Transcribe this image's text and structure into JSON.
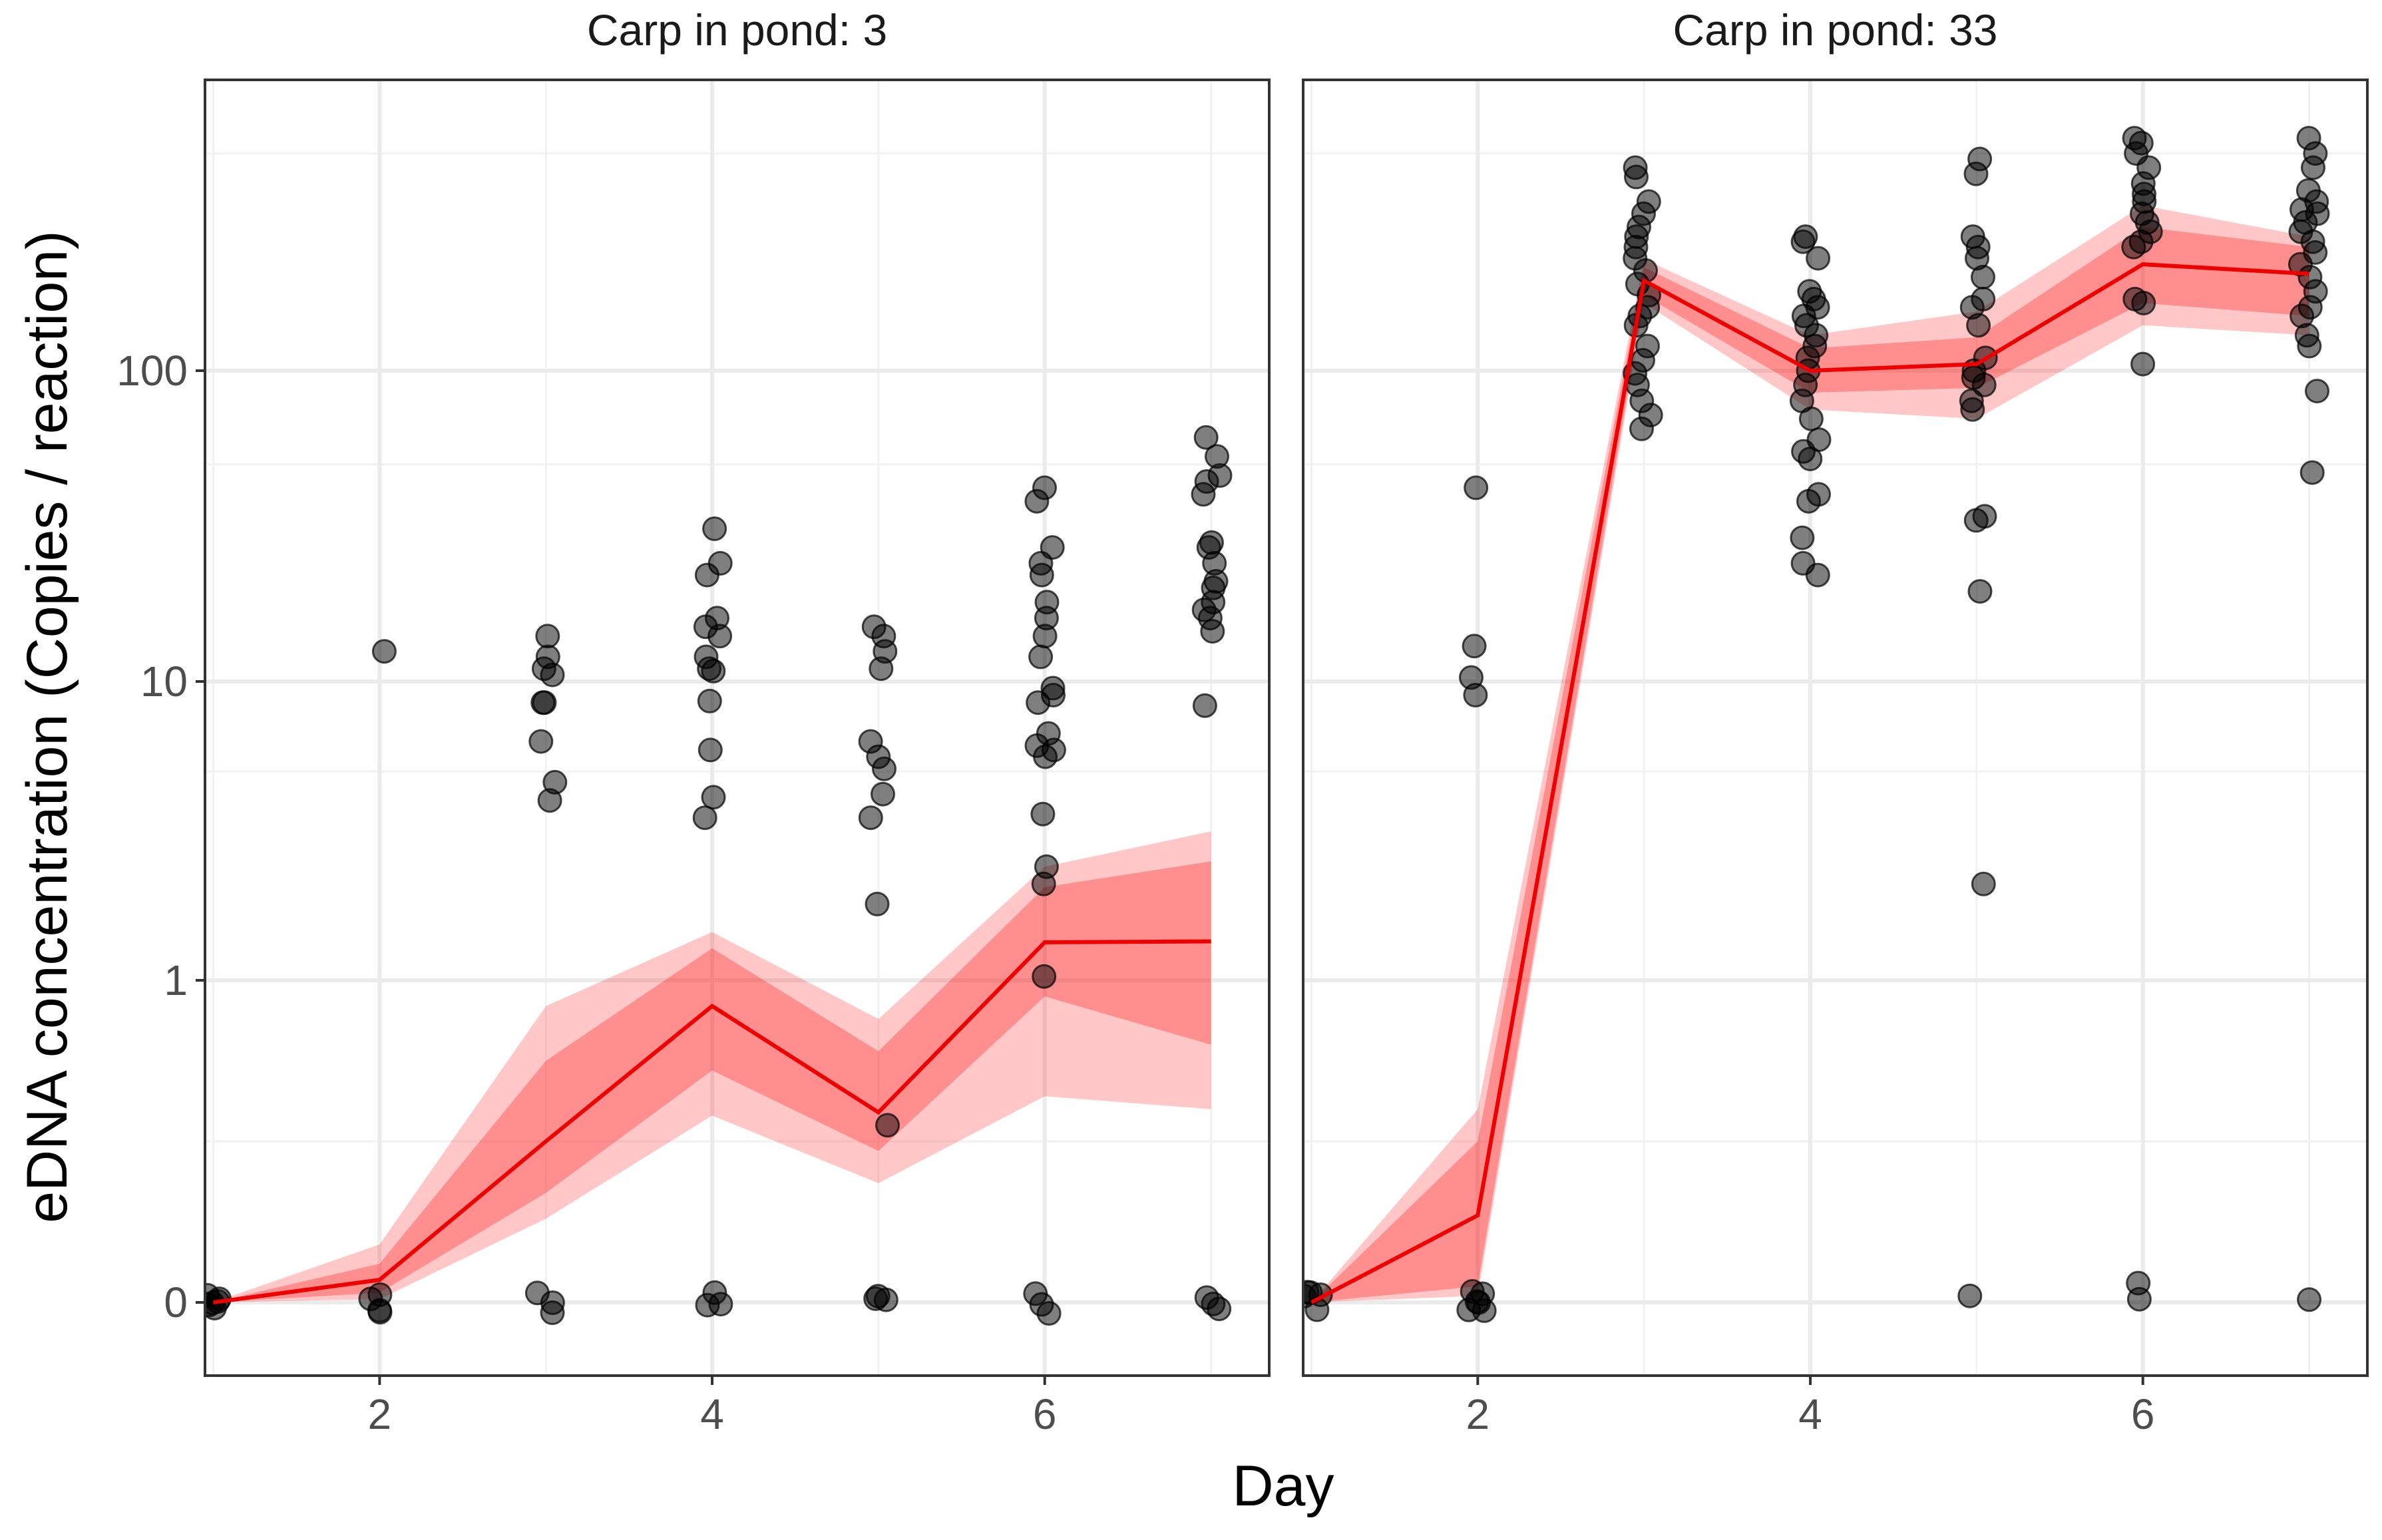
{
  "chart_data": [
    {
      "type": "line",
      "title": "Carp in pond: 3",
      "x": [
        1,
        2,
        3,
        4,
        5,
        6,
        7
      ],
      "series": [
        {
          "name": "mean",
          "values": [
            0,
            0.07,
            0.5,
            0.92,
            0.59,
            1.34,
            1.35
          ]
        },
        {
          "name": "inner_low",
          "values": [
            0,
            0.03,
            0.34,
            0.72,
            0.47,
            0.95,
            0.8
          ]
        },
        {
          "name": "inner_high",
          "values": [
            0,
            0.12,
            0.75,
            1.28,
            0.78,
            2.05,
            2.5
          ]
        },
        {
          "name": "outer_low",
          "values": [
            0,
            0.01,
            0.26,
            0.58,
            0.37,
            0.64,
            0.6
          ]
        },
        {
          "name": "outer_high",
          "values": [
            0,
            0.18,
            0.92,
            1.45,
            0.88,
            2.4,
            3.15
          ]
        }
      ],
      "points": [
        [
          1,
          0
        ],
        [
          1,
          0
        ],
        [
          1,
          0
        ],
        [
          1,
          0
        ],
        [
          1,
          0
        ],
        [
          1,
          0
        ],
        [
          2,
          12.5
        ],
        [
          2,
          0
        ],
        [
          2,
          0
        ],
        [
          2,
          0
        ],
        [
          2,
          0
        ],
        [
          3,
          14
        ],
        [
          3,
          12
        ],
        [
          3,
          11
        ],
        [
          3,
          10.5
        ],
        [
          3,
          8.5
        ],
        [
          3,
          8.5
        ],
        [
          3,
          6.3
        ],
        [
          3,
          4.6
        ],
        [
          3,
          4.0
        ],
        [
          3,
          0
        ],
        [
          3,
          0
        ],
        [
          3,
          0
        ],
        [
          4,
          31
        ],
        [
          4,
          24
        ],
        [
          4,
          22
        ],
        [
          4,
          16
        ],
        [
          4,
          15
        ],
        [
          4,
          14
        ],
        [
          4,
          12
        ],
        [
          4,
          11
        ],
        [
          4,
          10.8
        ],
        [
          4,
          8.6
        ],
        [
          4,
          5.9
        ],
        [
          4,
          4.1
        ],
        [
          4,
          3.5
        ],
        [
          4,
          0
        ],
        [
          4,
          0
        ],
        [
          4,
          0
        ],
        [
          5,
          15
        ],
        [
          5,
          14
        ],
        [
          5,
          12.5
        ],
        [
          5,
          11
        ],
        [
          5,
          6.3
        ],
        [
          5,
          5.6
        ],
        [
          5,
          5.1
        ],
        [
          5,
          4.2
        ],
        [
          5,
          3.5
        ],
        [
          5,
          1.8
        ],
        [
          5,
          0.55
        ],
        [
          5,
          0
        ],
        [
          5,
          0
        ],
        [
          5,
          0
        ],
        [
          6,
          42
        ],
        [
          6,
          38
        ],
        [
          6,
          27
        ],
        [
          6,
          24
        ],
        [
          6,
          22
        ],
        [
          6,
          18
        ],
        [
          6,
          16
        ],
        [
          6,
          14
        ],
        [
          6,
          12
        ],
        [
          6,
          9.5
        ],
        [
          6,
          9
        ],
        [
          6,
          8.5
        ],
        [
          6,
          6.7
        ],
        [
          6,
          6.1
        ],
        [
          6,
          5.9
        ],
        [
          6,
          5.6
        ],
        [
          6,
          3.6
        ],
        [
          6,
          2.4
        ],
        [
          6,
          2.1
        ],
        [
          6,
          1.03
        ],
        [
          6,
          0
        ],
        [
          6,
          0
        ],
        [
          6,
          0
        ],
        [
          7,
          61
        ],
        [
          7,
          53
        ],
        [
          7,
          46
        ],
        [
          7,
          44
        ],
        [
          7,
          40
        ],
        [
          7,
          28
        ],
        [
          7,
          27
        ],
        [
          7,
          24
        ],
        [
          7,
          21
        ],
        [
          7,
          20
        ],
        [
          7,
          18
        ],
        [
          7,
          17
        ],
        [
          7,
          16
        ],
        [
          7,
          14.5
        ],
        [
          7,
          8.3
        ],
        [
          7,
          0
        ],
        [
          7,
          0
        ],
        [
          7,
          0
        ]
      ],
      "xlabel": "Day",
      "ylabel": "eDNA concentration (Copies / reaction)",
      "xlim": [
        0.95,
        7.35
      ],
      "xticks": [
        2,
        4,
        6
      ],
      "yticks": [
        "0",
        "1",
        "10",
        "100"
      ],
      "grid": true
    },
    {
      "type": "line",
      "title": "Carp in pond: 33",
      "x": [
        1,
        2,
        3,
        4,
        5,
        6,
        7
      ],
      "series": [
        {
          "name": "mean",
          "values": [
            0,
            0.27,
            195,
            100,
            105,
            220,
            205
          ]
        },
        {
          "name": "inner_low",
          "values": [
            0,
            0.05,
            175,
            85,
            88,
            165,
            150
          ]
        },
        {
          "name": "inner_high",
          "values": [
            0,
            0.5,
            215,
            118,
            128,
            290,
            250
          ]
        },
        {
          "name": "outer_low",
          "values": [
            0,
            0.02,
            165,
            75,
            70,
            140,
            130
          ]
        },
        {
          "name": "outer_high",
          "values": [
            0,
            0.6,
            228,
            130,
            155,
            340,
            270
          ]
        }
      ],
      "points": [
        [
          1,
          0
        ],
        [
          1,
          0
        ],
        [
          1,
          0
        ],
        [
          1,
          0
        ],
        [
          1,
          0
        ],
        [
          2,
          42
        ],
        [
          2,
          13
        ],
        [
          2,
          10.3
        ],
        [
          2,
          9.0
        ],
        [
          2,
          0
        ],
        [
          2,
          0
        ],
        [
          2,
          0
        ],
        [
          2,
          0
        ],
        [
          2,
          0
        ],
        [
          2,
          0
        ],
        [
          3,
          450
        ],
        [
          3,
          420
        ],
        [
          3,
          350
        ],
        [
          3,
          320
        ],
        [
          3,
          290
        ],
        [
          3,
          270
        ],
        [
          3,
          250
        ],
        [
          3,
          230
        ],
        [
          3,
          210
        ],
        [
          3,
          190
        ],
        [
          3,
          175
        ],
        [
          3,
          160
        ],
        [
          3,
          150
        ],
        [
          3,
          140
        ],
        [
          3,
          120
        ],
        [
          3,
          108
        ],
        [
          3,
          98
        ],
        [
          3,
          90
        ],
        [
          3,
          80
        ],
        [
          3,
          72
        ],
        [
          3,
          65
        ],
        [
          4,
          270
        ],
        [
          4,
          260
        ],
        [
          4,
          230
        ],
        [
          4,
          180
        ],
        [
          4,
          170
        ],
        [
          4,
          160
        ],
        [
          4,
          150
        ],
        [
          4,
          140
        ],
        [
          4,
          130
        ],
        [
          4,
          120
        ],
        [
          4,
          110
        ],
        [
          4,
          100
        ],
        [
          4,
          90
        ],
        [
          4,
          80
        ],
        [
          4,
          70
        ],
        [
          4,
          60
        ],
        [
          4,
          55
        ],
        [
          4,
          52
        ],
        [
          4,
          40
        ],
        [
          4,
          38
        ],
        [
          4,
          29
        ],
        [
          4,
          24
        ],
        [
          4,
          22
        ],
        [
          5,
          480
        ],
        [
          5,
          430
        ],
        [
          5,
          270
        ],
        [
          5,
          250
        ],
        [
          5,
          230
        ],
        [
          5,
          200
        ],
        [
          5,
          170
        ],
        [
          5,
          160
        ],
        [
          5,
          140
        ],
        [
          5,
          110
        ],
        [
          5,
          100
        ],
        [
          5,
          95
        ],
        [
          5,
          90
        ],
        [
          5,
          80
        ],
        [
          5,
          75
        ],
        [
          5,
          34
        ],
        [
          5,
          33
        ],
        [
          5,
          19.5
        ],
        [
          5,
          2.1
        ],
        [
          5,
          0
        ],
        [
          6,
          560
        ],
        [
          6,
          540
        ],
        [
          6,
          500
        ],
        [
          6,
          450
        ],
        [
          6,
          400
        ],
        [
          6,
          370
        ],
        [
          6,
          350
        ],
        [
          6,
          320
        ],
        [
          6,
          300
        ],
        [
          6,
          280
        ],
        [
          6,
          260
        ],
        [
          6,
          250
        ],
        [
          6,
          170
        ],
        [
          6,
          165
        ],
        [
          6,
          105
        ],
        [
          6,
          0.06
        ],
        [
          6,
          0.01
        ],
        [
          7,
          560
        ],
        [
          7,
          500
        ],
        [
          7,
          450
        ],
        [
          7,
          380
        ],
        [
          7,
          350
        ],
        [
          7,
          330
        ],
        [
          7,
          320
        ],
        [
          7,
          300
        ],
        [
          7,
          280
        ],
        [
          7,
          260
        ],
        [
          7,
          240
        ],
        [
          7,
          220
        ],
        [
          7,
          200
        ],
        [
          7,
          180
        ],
        [
          7,
          160
        ],
        [
          7,
          150
        ],
        [
          7,
          130
        ],
        [
          7,
          120
        ],
        [
          7,
          86
        ],
        [
          7,
          47
        ],
        [
          7,
          0
        ]
      ],
      "xlabel": "Day",
      "ylabel": "eDNA concentration (Copies / reaction)",
      "xlim": [
        0.95,
        7.35
      ],
      "xticks": [
        2,
        4,
        6
      ],
      "yticks": [
        "0",
        "1",
        "10",
        "100"
      ],
      "grid": true
    }
  ],
  "axes": {
    "xlabel": "Day",
    "ylabel": "eDNA concentration (Copies / reaction)"
  }
}
